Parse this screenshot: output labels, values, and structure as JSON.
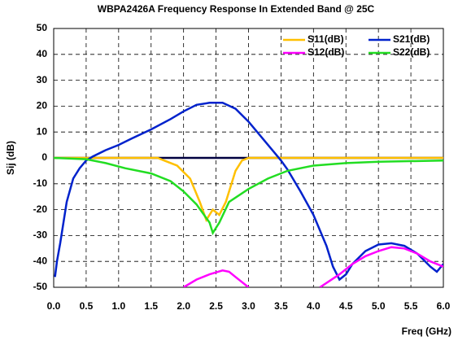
{
  "chart_data": {
    "type": "line",
    "title": "WBPA2426A Frequency Response In Extended Band @ 25C",
    "xlabel": "Freq (GHz)",
    "ylabel": "Sij (dB)",
    "xlim": [
      0,
      6
    ],
    "ylim": [
      -50,
      50
    ],
    "xticks": [
      {
        "value": 0,
        "label": "0.0"
      },
      0.5,
      {
        "value": 1,
        "label": "1.0"
      },
      1.5,
      {
        "value": 2,
        "label": "2.0"
      },
      2.5,
      {
        "value": 3,
        "label": "3.0"
      },
      3.5,
      {
        "value": 4,
        "label": "4.0"
      },
      4.5,
      {
        "value": 5,
        "label": "5.0"
      },
      5.5,
      {
        "value": 6,
        "label": "6.0"
      }
    ],
    "yticks": [
      -50,
      -40,
      -30,
      -20,
      -10,
      0,
      10,
      20,
      30,
      40,
      50
    ],
    "grid": true,
    "legend": "upper right",
    "series": [
      {
        "name": "S11(dB)",
        "color": "#ffc000",
        "x": [
          0,
          1.6,
          1.7,
          1.9,
          2.1,
          2.25,
          2.35,
          2.45,
          2.55,
          2.65,
          2.8,
          2.9,
          3.0,
          6.0
        ],
        "values": [
          0,
          0,
          -1,
          -3,
          -8,
          -17,
          -24,
          -20,
          -22,
          -17,
          -5,
          -1,
          0,
          0
        ]
      },
      {
        "name": "S21(dB)",
        "color": "#0022cc",
        "x": [
          0.02,
          0.05,
          0.1,
          0.15,
          0.2,
          0.3,
          0.4,
          0.5,
          0.6,
          0.8,
          1.0,
          1.2,
          1.5,
          1.8,
          2.0,
          2.2,
          2.4,
          2.6,
          2.8,
          3.0,
          3.2,
          3.4,
          3.5,
          3.6,
          3.8,
          4.0,
          4.2,
          4.3,
          4.4,
          4.5,
          4.6,
          4.8,
          5.0,
          5.2,
          5.4,
          5.6,
          5.8,
          5.9,
          6.0
        ],
        "values": [
          -46,
          -40,
          -33,
          -25,
          -17,
          -8,
          -4,
          -1,
          0.5,
          3,
          5,
          7.5,
          11,
          15,
          18,
          20.5,
          21.3,
          21.3,
          19,
          14,
          8,
          2,
          -1,
          -4.5,
          -13,
          -22,
          -34,
          -42,
          -47,
          -45,
          -41,
          -36,
          -33.5,
          -33,
          -34,
          -37,
          -42,
          -44,
          -41
        ]
      },
      {
        "name": "S12(dB)",
        "color": "#ff00ff",
        "x": [
          2.0,
          2.2,
          2.4,
          2.6,
          2.7,
          2.8,
          3.0,
          3.5,
          4.1,
          4.4,
          4.6,
          4.8,
          5.0,
          5.2,
          5.4,
          5.6,
          5.8,
          6.0
        ],
        "values": [
          -50,
          -47,
          -45,
          -43.5,
          -44,
          -46,
          -50,
          null,
          -50,
          -45,
          -41,
          -38,
          -36,
          -34.5,
          -35,
          -37,
          -40,
          -42
        ]
      },
      {
        "name": "S22(dB)",
        "color": "#22dd22",
        "x": [
          0,
          0.5,
          0.8,
          1.1,
          1.5,
          1.8,
          2.0,
          2.2,
          2.4,
          2.45,
          2.55,
          2.7,
          3.0,
          3.3,
          3.6,
          4.0,
          4.5,
          5.0,
          6.0
        ],
        "values": [
          0,
          -0.5,
          -2,
          -4,
          -6,
          -9,
          -13,
          -18,
          -25,
          -29,
          -25,
          -17,
          -12,
          -8,
          -5,
          -3,
          -2,
          -1.5,
          -1
        ]
      }
    ]
  }
}
